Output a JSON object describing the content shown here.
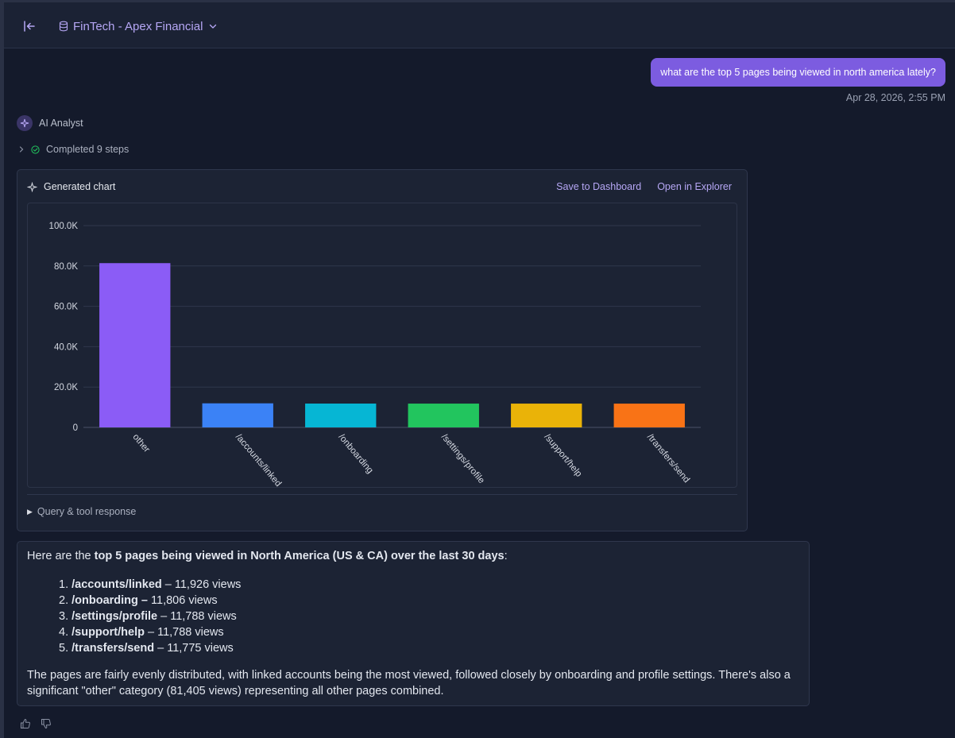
{
  "header": {
    "project_name": "FinTech - Apex Financial"
  },
  "user_message": {
    "text": "what are the top 5 pages being viewed in north america lately?",
    "timestamp": "Apr 28, 2026, 2:55 PM"
  },
  "assistant": {
    "name": "AI Analyst",
    "steps_label": "Completed 9 steps"
  },
  "chart_card": {
    "title": "Generated chart",
    "save_label": "Save to Dashboard",
    "explore_label": "Open in Explorer",
    "query_label": "Query & tool response"
  },
  "chart_data": {
    "type": "bar",
    "categories": [
      "other",
      "/accounts/linked",
      "/onboarding",
      "/settings/profile",
      "/support/help",
      "/transfers/send"
    ],
    "values": [
      81405,
      11926,
      11806,
      11788,
      11788,
      11775
    ],
    "colors": [
      "#8b5cf6",
      "#3b82f6",
      "#06b6d4",
      "#22c55e",
      "#eab308",
      "#f97316"
    ],
    "ylim": [
      0,
      100000
    ],
    "yticks": [
      0,
      20000,
      40000,
      60000,
      80000,
      100000
    ],
    "ytick_labels": [
      "0",
      "20.0K",
      "40.0K",
      "60.0K",
      "80.0K",
      "100.0K"
    ],
    "grid": true
  },
  "answer": {
    "intro_pre": "Here are the ",
    "intro_bold": "top 5 pages being viewed in North America (US & CA) over the last 30 days",
    "intro_post": ":",
    "items": [
      {
        "num": "1.",
        "page": "/accounts/linked",
        "views": " – 11,926 views"
      },
      {
        "num": "2.",
        "page": "/onboarding –",
        "views": " 11,806 views"
      },
      {
        "num": "3.",
        "page": "/settings/profile",
        "views": " – 11,788 views"
      },
      {
        "num": "4.",
        "page": "/support/help",
        "views": " – 11,788 views"
      },
      {
        "num": "5.",
        "page": "/transfers/send",
        "views": " – 11,775 views"
      }
    ],
    "outro": "The pages are fairly evenly distributed, with linked accounts being the most viewed, followed closely by onboarding and profile settings. There's also a significant \"other\" category (81,405 views) representing all other pages combined."
  },
  "feedback": {
    "like_icon": "thumbs-up-icon",
    "dislike_icon": "thumbs-down-icon"
  }
}
